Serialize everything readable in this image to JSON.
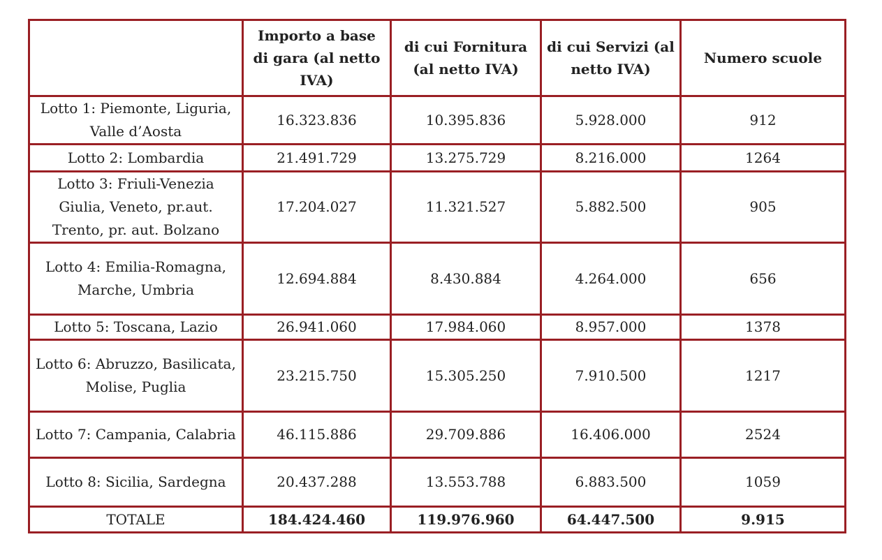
{
  "table": {
    "columns": [
      "Importo a base di gara (al netto IVA)",
      "di cui Fornitura (al netto IVA)",
      "di cui Servizi (al netto IVA)",
      "Numero scuole"
    ],
    "rows": [
      [
        "Lotto 1: Piemonte, Liguria, Valle d’Aosta",
        "16.323.836",
        "10.395.836",
        "5.928.000",
        "912"
      ],
      [
        "Lotto 2: Lombardia",
        "21.491.729",
        "13.275.729",
        "8.216.000",
        "1264"
      ],
      [
        "Lotto 3: Friuli-Venezia Giulia, Veneto, pr.aut. Trento, pr. aut. Bolzano",
        "17.204.027",
        "11.321.527",
        "5.882.500",
        "905"
      ],
      [
        "Lotto 4: Emilia-Romagna, Marche, Umbria",
        "12.694.884",
        "8.430.884",
        "4.264.000",
        "656"
      ],
      [
        "Lotto 5: Toscana, Lazio",
        "26.941.060",
        "17.984.060",
        "8.957.000",
        "1378"
      ],
      [
        "Lotto 6: Abruzzo, Basilicata, Molise, Puglia",
        "23.215.750",
        "15.305.250",
        "7.910.500",
        "1217"
      ],
      [
        "Lotto 7: Campania, Calabria",
        "46.115.886",
        "29.709.886",
        "16.406.000",
        "2524"
      ],
      [
        "Lotto 8: Sicilia, Sardegna",
        "20.437.288",
        "13.553.788",
        "6.883.500",
        "1059"
      ]
    ],
    "total": [
      "TOTALE",
      "184.424.460",
      "119.976.960",
      "64.447.500",
      "9.915"
    ]
  }
}
